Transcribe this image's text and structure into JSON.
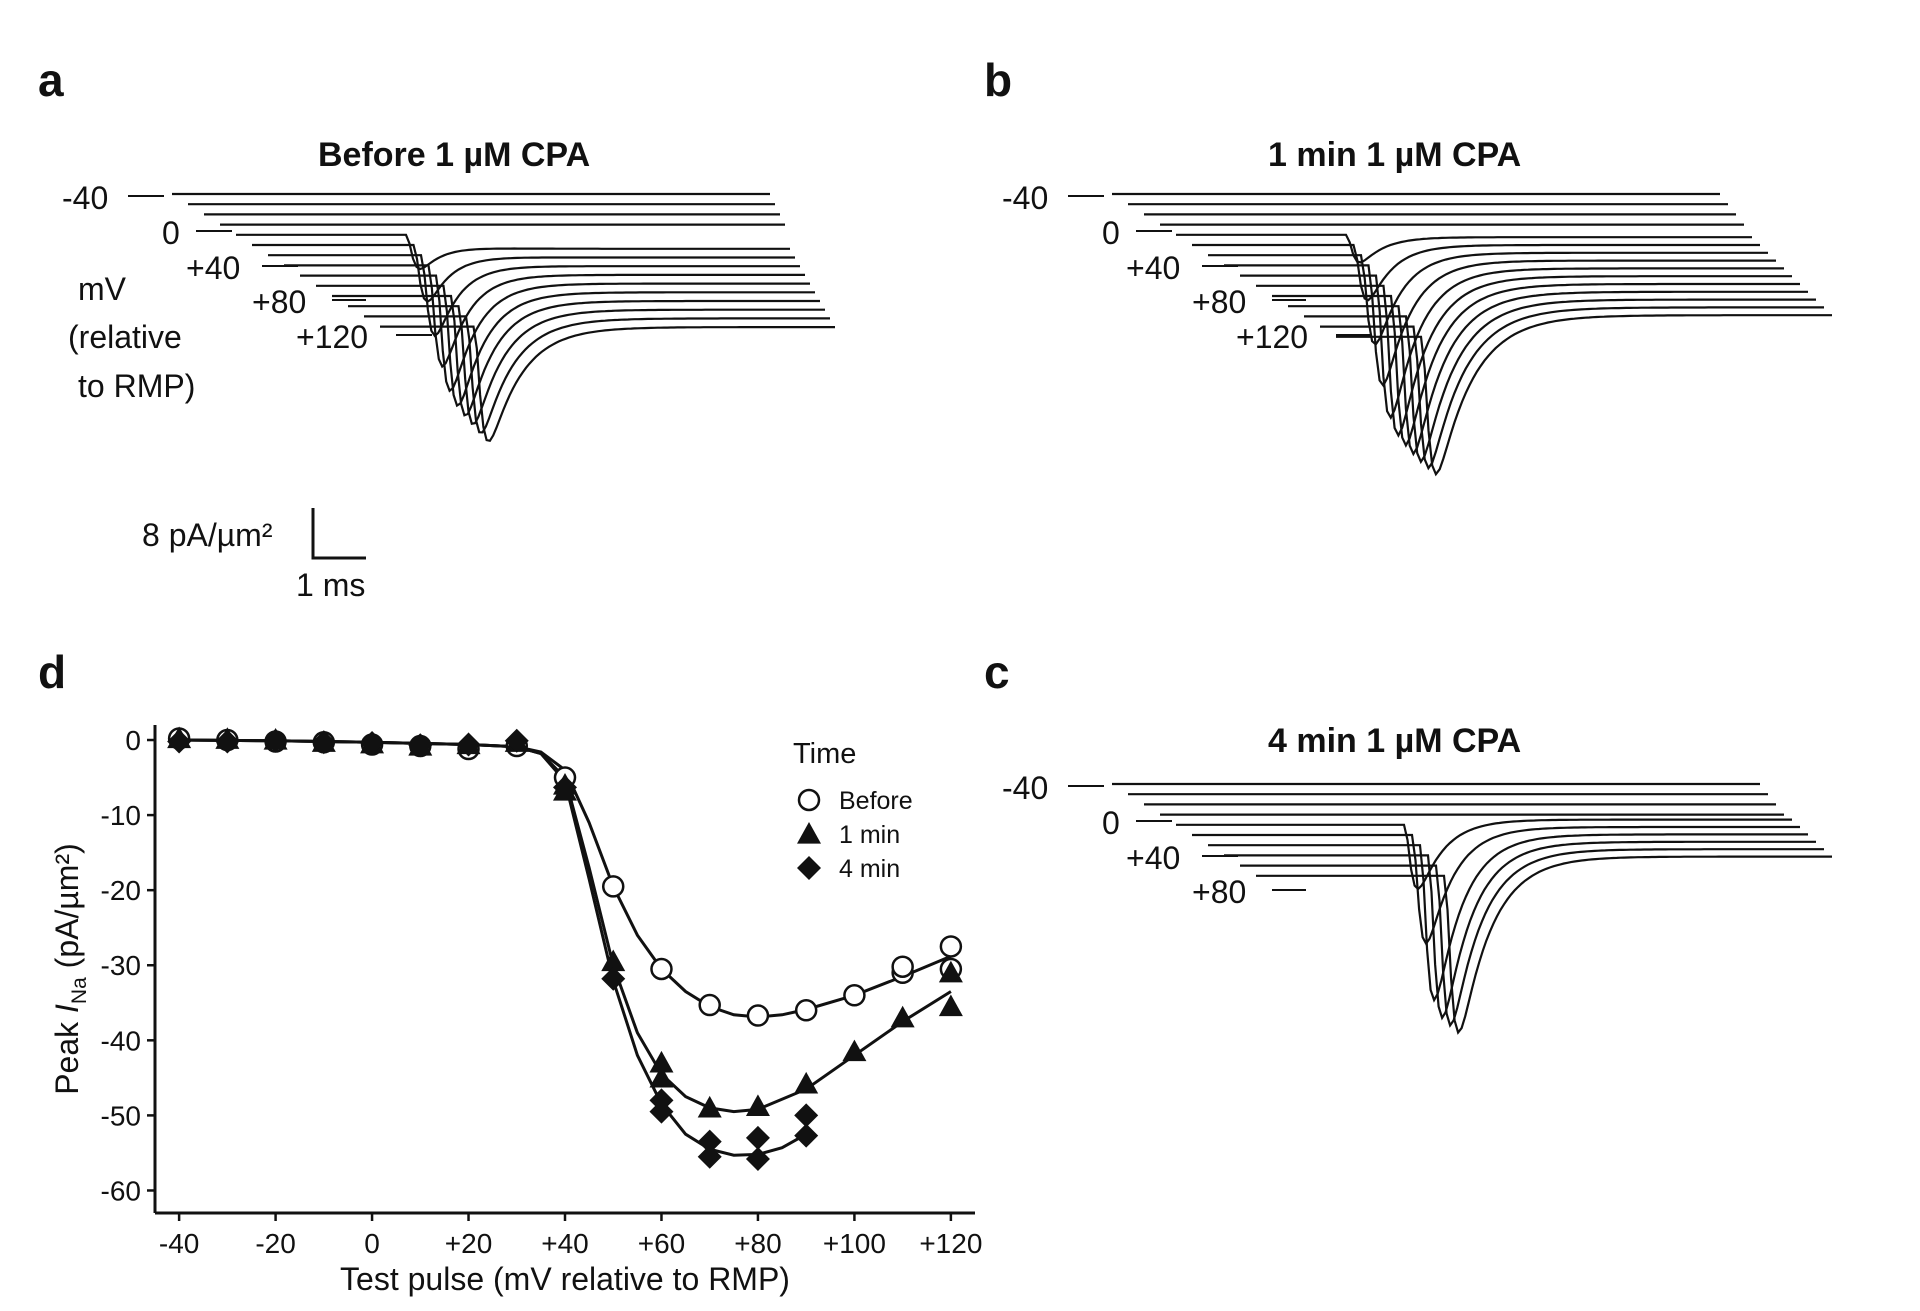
{
  "panels": {
    "a": {
      "letter": "a",
      "title": "Before 1 µM CPA",
      "voltage_labels": [
        "-40",
        "0",
        "+40",
        "+80",
        "+120"
      ],
      "unit_label": [
        "mV",
        "(relative",
        "to RMP)"
      ],
      "scalebar": {
        "y_label": "8 pA/µm²",
        "x_label": "1 ms"
      }
    },
    "b": {
      "letter": "b",
      "title": "1 min 1 µM CPA",
      "voltage_labels": [
        "-40",
        "0",
        "+40",
        "+80",
        "+120"
      ]
    },
    "c": {
      "letter": "c",
      "title": "4 min 1 µM CPA",
      "voltage_labels": [
        "-40",
        "0",
        "+40",
        "+80"
      ]
    },
    "d": {
      "letter": "d"
    }
  },
  "chart_data": {
    "type": "scatter",
    "xlabel": "Test pulse (mV relative to RMP)",
    "ylabel_prefix": "Peak ",
    "ylabel_italic": "I",
    "ylabel_sub": "Na",
    "ylabel_suffix": "  (pA/µm²)",
    "xlim": [
      -45,
      125
    ],
    "ylim": [
      -63,
      2
    ],
    "x_ticks": [
      -40,
      -20,
      0,
      20,
      40,
      60,
      80,
      100,
      120
    ],
    "x_tick_labels": [
      "-40",
      "-20",
      "0",
      "+20",
      "+40",
      "+60",
      "+80",
      "+100",
      "+120"
    ],
    "y_ticks": [
      0,
      -10,
      -20,
      -30,
      -40,
      -50,
      -60
    ],
    "y_tick_labels": [
      "0",
      "-10",
      "-20",
      "-30",
      "-40",
      "-50",
      "-60"
    ],
    "legend": {
      "title": "Time",
      "position": "top-right"
    },
    "series": [
      {
        "name": "Before",
        "marker": "open-circle",
        "x": [
          -40,
          -30,
          -20,
          -10,
          0,
          10,
          20,
          30,
          40,
          50,
          60,
          70,
          80,
          90,
          100,
          110,
          110,
          120,
          120
        ],
        "y": [
          0.2,
          0.0,
          -0.2,
          -0.3,
          -0.6,
          -0.8,
          -1.2,
          -0.8,
          -5.0,
          -19.5,
          -30.5,
          -35.3,
          -36.7,
          -36.0,
          -34.0,
          -31.0,
          -30.2,
          -27.5,
          -30.5
        ]
      },
      {
        "name": "1 min",
        "marker": "filled-triangle",
        "x": [
          -40,
          -30,
          -20,
          -10,
          0,
          10,
          20,
          30,
          40,
          40,
          50,
          60,
          60,
          70,
          80,
          90,
          100,
          110,
          120,
          120
        ],
        "y": [
          0.2,
          0.1,
          0.0,
          -0.3,
          -0.5,
          -0.8,
          -0.6,
          -0.3,
          -6.0,
          -6.8,
          -29.5,
          -43.0,
          -45.0,
          -49.0,
          -48.8,
          -45.8,
          -41.5,
          -37.0,
          -31.0,
          -35.5
        ]
      },
      {
        "name": "4 min",
        "marker": "filled-diamond",
        "x": [
          -40,
          -30,
          -20,
          -10,
          0,
          10,
          20,
          30,
          40,
          50,
          60,
          60,
          70,
          70,
          80,
          80,
          90,
          90
        ],
        "y": [
          -0.2,
          -0.2,
          -0.1,
          -0.3,
          -0.4,
          -0.7,
          -0.6,
          -0.1,
          -6.3,
          -31.8,
          -48.0,
          -49.5,
          -53.5,
          -55.5,
          -53.0,
          -55.8,
          -50.0,
          -52.7
        ]
      }
    ],
    "fits": [
      {
        "name": "Before",
        "x": [
          -40,
          -20,
          0,
          20,
          30,
          35,
          40,
          45,
          50,
          55,
          60,
          65,
          70,
          75,
          80,
          85,
          90,
          100,
          110,
          120
        ],
        "y": [
          0.0,
          -0.1,
          -0.3,
          -0.6,
          -0.9,
          -1.6,
          -4.0,
          -11.0,
          -19.5,
          -26.0,
          -30.5,
          -33.5,
          -35.5,
          -36.6,
          -36.9,
          -36.6,
          -35.9,
          -34.0,
          -31.5,
          -28.8
        ]
      },
      {
        "name": "1 min",
        "x": [
          -40,
          -20,
          0,
          20,
          30,
          35,
          40,
          45,
          50,
          55,
          60,
          65,
          70,
          75,
          80,
          90,
          100,
          110,
          120
        ],
        "y": [
          0.0,
          -0.1,
          -0.3,
          -0.6,
          -0.9,
          -1.8,
          -5.0,
          -17.0,
          -30.0,
          -39.0,
          -44.5,
          -47.5,
          -49.0,
          -49.5,
          -49.2,
          -46.5,
          -42.0,
          -37.5,
          -33.5
        ]
      },
      {
        "name": "4 min",
        "x": [
          -40,
          -20,
          0,
          20,
          30,
          35,
          40,
          45,
          50,
          55,
          60,
          65,
          70,
          75,
          80,
          85,
          90
        ],
        "y": [
          0.0,
          -0.1,
          -0.3,
          -0.6,
          -0.9,
          -1.8,
          -5.5,
          -18.5,
          -32.0,
          -42.0,
          -48.5,
          -52.5,
          -54.5,
          -55.3,
          -55.2,
          -54.3,
          -52.5
        ]
      }
    ]
  },
  "styles": {
    "ink": "#111111",
    "background": "#ffffff"
  }
}
